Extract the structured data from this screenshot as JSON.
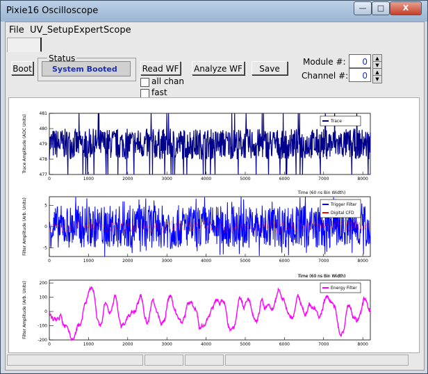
{
  "window": {
    "title": "Pixie16 Oscilloscope",
    "controls": {
      "minimize": "—",
      "maximize": "□",
      "close": "X"
    }
  },
  "menu": [
    "File",
    "UV_Setup",
    "Expert",
    "Scope"
  ],
  "toolbar": {
    "boot_label": "Boot",
    "status_legend": "Status",
    "status_value": "System Booted",
    "read_wf_label": "Read WF",
    "analyze_wf_label": "Analyze WF",
    "save_label": "Save",
    "all_chan_label": "all chan",
    "fast_label": "fast",
    "module_label": "Module #:",
    "module_value": "0",
    "channel_label": "Channel #:",
    "channel_value": "0"
  },
  "colors": {
    "trace": "#00008b",
    "trigger": "#0000ff",
    "cfd": "#ff0000",
    "energy": "#ff00ff"
  },
  "chart_data": [
    {
      "type": "line",
      "ylabel": "Trace Amplitude (ADC Units)",
      "xlabel": "",
      "xlim": [
        0,
        8192
      ],
      "ylim": [
        477,
        481
      ],
      "x_ticks": [
        "0",
        "1000",
        "2000",
        "3000",
        "4000",
        "5000",
        "6000",
        "7000",
        "8000"
      ],
      "y_ticks": [
        "477",
        "478",
        "479",
        "480",
        "481"
      ],
      "series": [
        {
          "name": "Trace",
          "description": "dense noise band 478-480 ADC with occasional spikes to 481 and dips to 477"
        }
      ],
      "legend_placement": "top-right"
    },
    {
      "type": "line",
      "ylabel": "Filter Amplitude (Arb. Units)",
      "xlabel": "Time (60 ns Bin Width)",
      "xlim": [
        0,
        8192
      ],
      "ylim": [
        -7,
        7
      ],
      "x_ticks": [
        "0",
        "1000",
        "2000",
        "3000",
        "4000",
        "5000",
        "6000",
        "7000",
        "8000"
      ],
      "y_ticks": [
        "-5",
        "0",
        "5"
      ],
      "series": [
        {
          "name": "Trigger Filter"
        },
        {
          "name": "Digital CFD"
        }
      ],
      "legend_placement": "top-right"
    },
    {
      "type": "line",
      "ylabel": "Filter Amplitude (Arb. Units)",
      "xlabel": "Time (60 ns Bin Width)",
      "xlim": [
        0,
        8192
      ],
      "ylim": [
        -200,
        220
      ],
      "x_ticks": [
        "0",
        "1000",
        "2000",
        "3000",
        "4000",
        "5000",
        "6000",
        "7000",
        "8000"
      ],
      "y_ticks": [
        "-200",
        "-100",
        "0",
        "100",
        "200"
      ],
      "series": [
        {
          "name": "Energy Filter"
        }
      ],
      "legend_placement": "top-right"
    }
  ],
  "third_xlabel": "Time (60 ns Bin Width)"
}
